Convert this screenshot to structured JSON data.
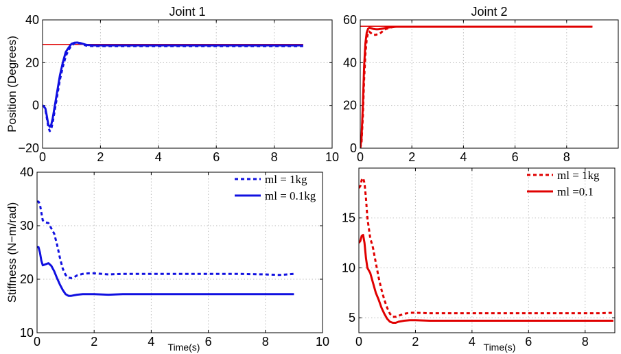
{
  "chart_data": [
    {
      "type": "line",
      "title": "Joint 1",
      "ylabel": "Position (Degrees)",
      "xlabel": "",
      "xlim": [
        0,
        10
      ],
      "ylim": [
        -20,
        40
      ],
      "xticks": [
        0,
        2,
        4,
        6,
        8,
        10
      ],
      "yticks": [
        -20,
        0,
        20,
        40
      ],
      "grid": true,
      "legend": "none",
      "series": [
        {
          "style": "reference",
          "color": "#e00000",
          "x": [
            0,
            9
          ],
          "y": [
            28.5,
            28.5
          ]
        },
        {
          "style": "dashed",
          "color": "#1010e0",
          "x": [
            0,
            0.05,
            0.1,
            0.15,
            0.2,
            0.25,
            0.3,
            0.35,
            0.4,
            0.5,
            0.6,
            0.7,
            0.8,
            0.9,
            1.0,
            1.1,
            1.2,
            1.3,
            1.4,
            1.5,
            1.6,
            1.8,
            2.0,
            2.5,
            3,
            4,
            5,
            6,
            7,
            8,
            9
          ],
          "y": [
            0,
            -0.5,
            -2,
            -6,
            -10,
            -12,
            -11,
            -8,
            -4,
            4,
            12,
            18,
            23,
            26,
            28,
            29,
            29.2,
            29,
            28.5,
            28,
            27.8,
            27.7,
            27.7,
            27.7,
            27.7,
            27.7,
            27.7,
            27.7,
            27.7,
            27.7,
            27.7
          ]
        },
        {
          "style": "solid",
          "color": "#1010e0",
          "x": [
            0,
            0.05,
            0.1,
            0.15,
            0.2,
            0.25,
            0.3,
            0.35,
            0.4,
            0.5,
            0.6,
            0.7,
            0.8,
            0.9,
            1.0,
            1.1,
            1.2,
            1.3,
            1.4,
            1.5,
            1.6,
            1.8,
            2.0,
            2.5,
            3,
            4,
            5,
            6,
            7,
            8,
            9
          ],
          "y": [
            0,
            -0.5,
            -1.5,
            -5,
            -9,
            -10,
            -9,
            -6,
            -2,
            6,
            14,
            20,
            25,
            27,
            28.8,
            29.3,
            29.4,
            29.2,
            28.8,
            28.4,
            28.2,
            28.1,
            28.1,
            28.1,
            28.1,
            28.1,
            28.1,
            28.1,
            28.1,
            28.1,
            28.1
          ]
        }
      ]
    },
    {
      "type": "line",
      "title": "Joint 2",
      "xlabel": "",
      "ylabel": "",
      "xlim": [
        0,
        10
      ],
      "ylim": [
        0,
        60
      ],
      "xticks": [
        0,
        2,
        4,
        6,
        8
      ],
      "yticks": [
        0,
        20,
        40,
        60
      ],
      "grid": true,
      "legend": "none",
      "series": [
        {
          "style": "reference",
          "color": "#e00000",
          "x": [
            0,
            9
          ],
          "y": [
            57,
            57
          ]
        },
        {
          "style": "dashed",
          "color": "#e00000",
          "x": [
            0,
            0.05,
            0.1,
            0.15,
            0.2,
            0.25,
            0.3,
            0.35,
            0.4,
            0.5,
            0.6,
            0.7,
            0.8,
            0.9,
            1.0,
            1.2,
            1.4,
            1.6,
            2,
            3,
            4,
            5,
            6,
            7,
            8,
            9
          ],
          "y": [
            0,
            3,
            15,
            32,
            44,
            51,
            54,
            54.5,
            54,
            53,
            53,
            53.5,
            54,
            55,
            55.8,
            56.5,
            56.8,
            56.8,
            56.8,
            56.8,
            56.8,
            56.8,
            56.8,
            56.8,
            56.8,
            56.8
          ]
        },
        {
          "style": "solid",
          "color": "#e00000",
          "x": [
            0,
            0.05,
            0.1,
            0.15,
            0.2,
            0.25,
            0.3,
            0.35,
            0.4,
            0.5,
            0.6,
            0.7,
            0.8,
            0.9,
            1.0,
            1.2,
            1.4,
            1.6,
            2,
            3,
            4,
            5,
            6,
            7,
            8,
            9
          ],
          "y": [
            0,
            5,
            20,
            38,
            49,
            54,
            55.8,
            56.3,
            56.2,
            55.8,
            55.6,
            55.6,
            55.8,
            56,
            56.3,
            56.6,
            56.8,
            56.8,
            56.8,
            56.8,
            56.8,
            56.8,
            56.8,
            56.8,
            56.8,
            56.8
          ]
        }
      ]
    },
    {
      "type": "line",
      "title": "",
      "ylabel": "Stiffness (N−m/rad)",
      "xlabel": "Time(s)",
      "xlim": [
        0,
        10
      ],
      "ylim": [
        10,
        40
      ],
      "xticks": [
        0,
        2,
        4,
        6,
        8,
        10
      ],
      "yticks": [
        10,
        20,
        30,
        40
      ],
      "grid": true,
      "legend": "top-right",
      "series": [
        {
          "name": "ml = 1kg",
          "style": "dashed",
          "color": "#1010e0",
          "x": [
            0,
            0.05,
            0.1,
            0.15,
            0.2,
            0.3,
            0.4,
            0.5,
            0.6,
            0.7,
            0.8,
            0.9,
            1.0,
            1.1,
            1.2,
            1.3,
            1.4,
            1.6,
            1.8,
            2.0,
            2.5,
            3,
            4,
            5,
            6,
            7,
            8,
            8.5,
            9
          ],
          "y": [
            34.5,
            34.5,
            34,
            32.5,
            31,
            30.6,
            30.5,
            29.5,
            28.5,
            26.5,
            24,
            22,
            20.8,
            20.3,
            20.2,
            20.4,
            20.7,
            21,
            21.1,
            21.1,
            20.9,
            21,
            21,
            21,
            21,
            21,
            20.9,
            20.8,
            21
          ]
        },
        {
          "name": "ml = 0.1kg",
          "style": "solid",
          "color": "#1010e0",
          "x": [
            0,
            0.05,
            0.1,
            0.15,
            0.2,
            0.3,
            0.4,
            0.5,
            0.6,
            0.7,
            0.8,
            0.9,
            1.0,
            1.1,
            1.2,
            1.3,
            1.4,
            1.6,
            1.8,
            2.0,
            2.5,
            3,
            4,
            5,
            6,
            7,
            8,
            8.5,
            9
          ],
          "y": [
            26,
            26,
            25,
            23.5,
            22.6,
            22.8,
            23,
            22.5,
            21.5,
            20.2,
            19,
            18,
            17.2,
            16.9,
            16.9,
            17,
            17.1,
            17.2,
            17.2,
            17.2,
            17.1,
            17.2,
            17.2,
            17.2,
            17.2,
            17.2,
            17.2,
            17.2,
            17.2
          ]
        }
      ]
    },
    {
      "type": "line",
      "title": "",
      "xlabel": "Time(s)",
      "ylabel": "",
      "xlim": [
        0,
        9.05
      ],
      "ylim": [
        3.5,
        20
      ],
      "xticks": [
        0,
        2,
        4,
        6,
        8
      ],
      "yticks": [
        5,
        10,
        15
      ],
      "grid": true,
      "legend": "top-right",
      "series": [
        {
          "name": "ml = 1kg",
          "style": "dashed",
          "color": "#e00000",
          "x": [
            0,
            0.05,
            0.1,
            0.15,
            0.2,
            0.25,
            0.3,
            0.4,
            0.5,
            0.6,
            0.7,
            0.8,
            0.9,
            1.0,
            1.1,
            1.2,
            1.3,
            1.4,
            1.6,
            1.8,
            2.0,
            2.5,
            3,
            4,
            5,
            6,
            7,
            8,
            8.5,
            9
          ],
          "y": [
            18,
            18.2,
            18.8,
            19,
            18.5,
            17,
            15,
            13,
            12,
            10.5,
            9,
            7.8,
            6.8,
            6,
            5.4,
            5.1,
            5.1,
            5.2,
            5.4,
            5.5,
            5.5,
            5.45,
            5.45,
            5.45,
            5.45,
            5.45,
            5.45,
            5.45,
            5.45,
            5.5
          ]
        },
        {
          "name": "ml =0.1",
          "style": "solid",
          "color": "#e00000",
          "x": [
            0,
            0.05,
            0.1,
            0.15,
            0.2,
            0.25,
            0.3,
            0.4,
            0.5,
            0.6,
            0.7,
            0.8,
            0.9,
            1.0,
            1.1,
            1.2,
            1.3,
            1.4,
            1.6,
            1.8,
            2.0,
            2.5,
            3,
            4,
            5,
            6,
            7,
            8,
            8.5,
            9
          ],
          "y": [
            12.5,
            12.7,
            13.2,
            13.3,
            12.5,
            11,
            10,
            9.5,
            8.5,
            7.5,
            6.8,
            6,
            5.4,
            4.9,
            4.6,
            4.5,
            4.5,
            4.6,
            4.7,
            4.75,
            4.75,
            4.7,
            4.7,
            4.7,
            4.7,
            4.7,
            4.7,
            4.7,
            4.7,
            4.7
          ]
        }
      ]
    }
  ]
}
